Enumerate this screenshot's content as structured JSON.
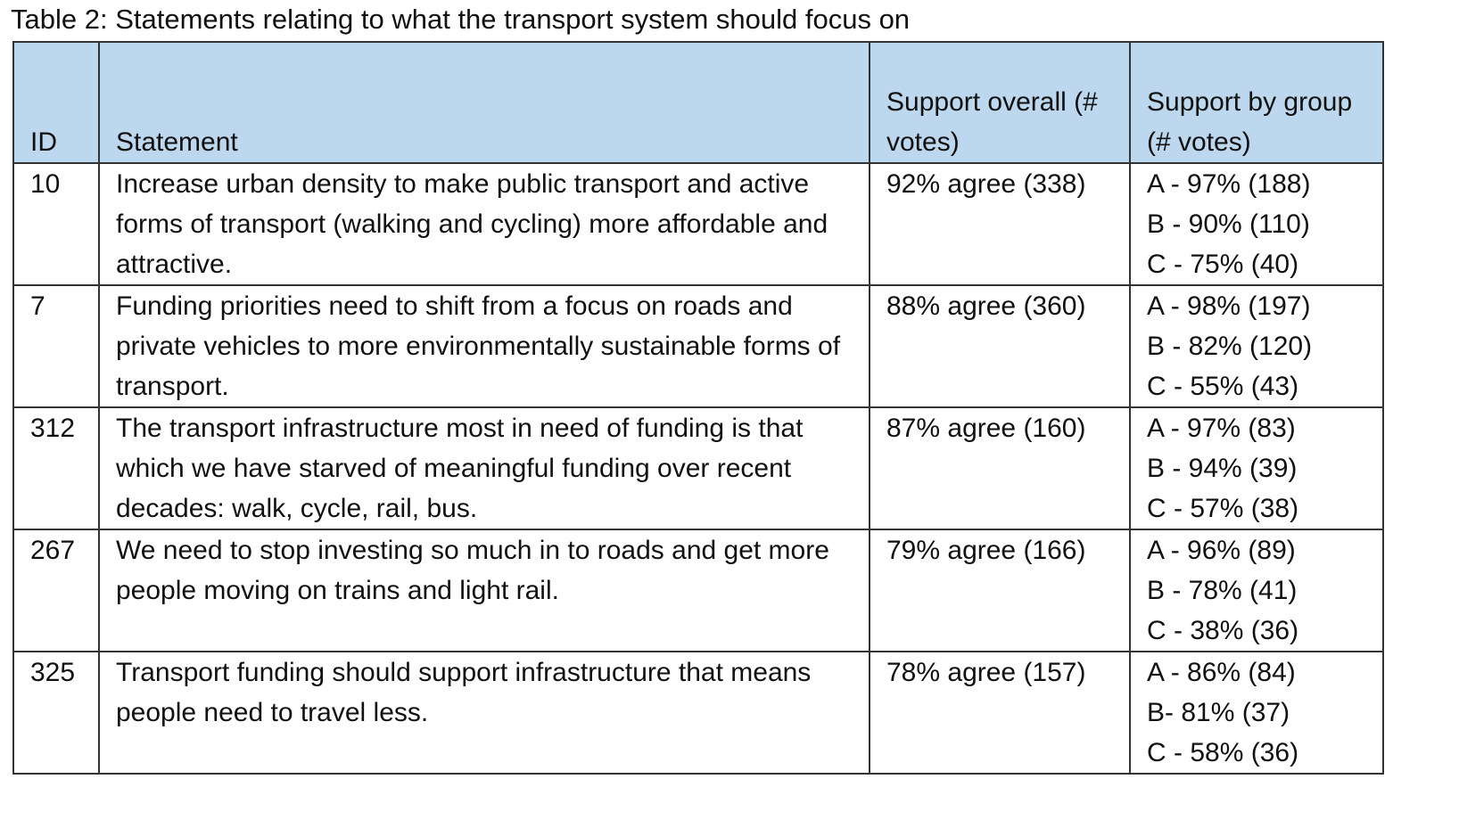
{
  "title": "Table 2: Statements relating to what the transport system should focus on",
  "table": {
    "headers": [
      "ID",
      "Statement",
      "Support overall (# votes)",
      "Support by group (# votes)"
    ],
    "rows": [
      [
        "10",
        "Increase urban density to make public transport and active forms of transport (walking and cycling) more affordable and attractive.",
        "92% agree (338)",
        [
          "A - 97% (188)",
          "B - 90% (110)",
          "C - 75% (40)"
        ]
      ],
      [
        "7",
        "Funding priorities need to shift from a focus on roads and private vehicles to more environmentally sustainable forms of transport.",
        "88% agree (360)",
        [
          "A - 98% (197)",
          "B - 82% (120)",
          "C - 55% (43)"
        ]
      ],
      [
        "312",
        "The transport infrastructure most in need of funding is that which we have starved of meaningful funding over recent decades: walk, cycle, rail, bus.",
        "87% agree (160)",
        [
          "A - 97% (83)",
          "B - 94% (39)",
          "C - 57% (38)"
        ]
      ],
      [
        "267",
        "We need to stop investing so much in to roads and get more people moving on trains and light rail.",
        "79% agree (166)",
        [
          "A - 96% (89)",
          "B - 78% (41)",
          "C - 38% (36)"
        ]
      ],
      [
        "325",
        "Transport funding should support infrastructure that means people need to travel less.",
        "78% agree (157)",
        [
          "A - 86% (84)",
          "B- 81% (37)",
          "C - 58% (36)"
        ]
      ]
    ]
  }
}
